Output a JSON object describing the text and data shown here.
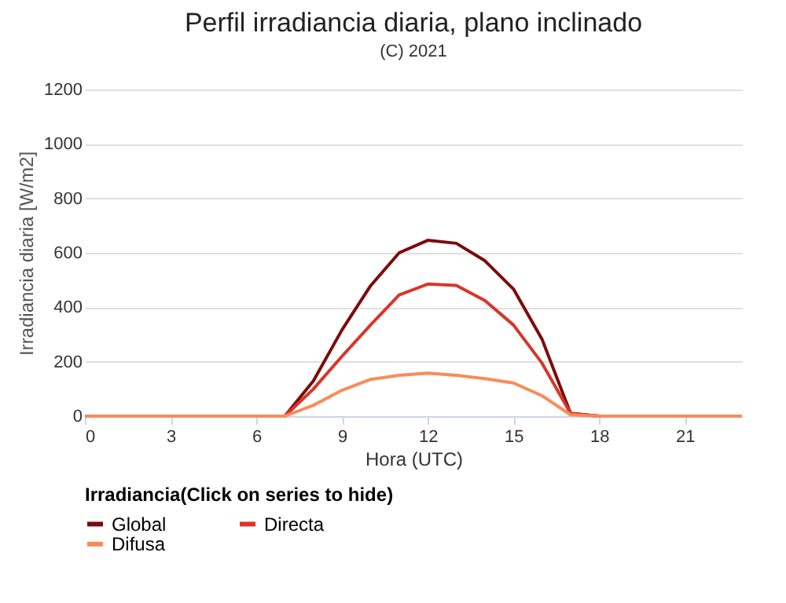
{
  "chart_data": {
    "type": "line",
    "title": "Perfil irradiancia diaria, plano inclinado",
    "subtitle": "(C) 2021",
    "xlabel": "Hora (UTC)",
    "ylabel": "Irradiancia diaria [W/m2]",
    "legend_title": "Irradiancia(Click on series to hide)",
    "legend": "bottom",
    "grid": "y",
    "marker": "none",
    "line_style": "solid",
    "x": [
      0,
      1,
      2,
      3,
      4,
      5,
      6,
      7,
      8,
      9,
      10,
      11,
      12,
      13,
      14,
      15,
      16,
      17,
      18,
      19,
      20,
      21,
      22,
      23
    ],
    "xlim": [
      0,
      23
    ],
    "xticks": [
      0,
      3,
      6,
      9,
      12,
      15,
      18,
      21
    ],
    "ylim": [
      0,
      1200
    ],
    "yticks": [
      0,
      200,
      400,
      600,
      800,
      1000,
      1200
    ],
    "series": [
      {
        "name": "Global",
        "color": "#7b0c0c",
        "values": [
          null,
          null,
          null,
          null,
          null,
          null,
          0,
          0,
          130,
          317,
          479,
          600,
          646,
          635,
          571,
          467,
          283,
          10,
          0,
          0,
          null,
          null,
          null,
          null
        ]
      },
      {
        "name": "Directa",
        "color": "#d9352a",
        "values": [
          null,
          null,
          null,
          null,
          null,
          null,
          0,
          0,
          100,
          220,
          335,
          445,
          485,
          480,
          425,
          335,
          195,
          10,
          0,
          0,
          null,
          null,
          null,
          null
        ]
      },
      {
        "name": "Difusa",
        "color": "#f98b5a",
        "values": [
          0,
          0,
          0,
          0,
          0,
          0,
          0,
          0,
          40,
          95,
          135,
          150,
          158,
          150,
          138,
          122,
          75,
          5,
          0,
          0,
          0,
          0,
          0,
          0
        ]
      }
    ]
  }
}
